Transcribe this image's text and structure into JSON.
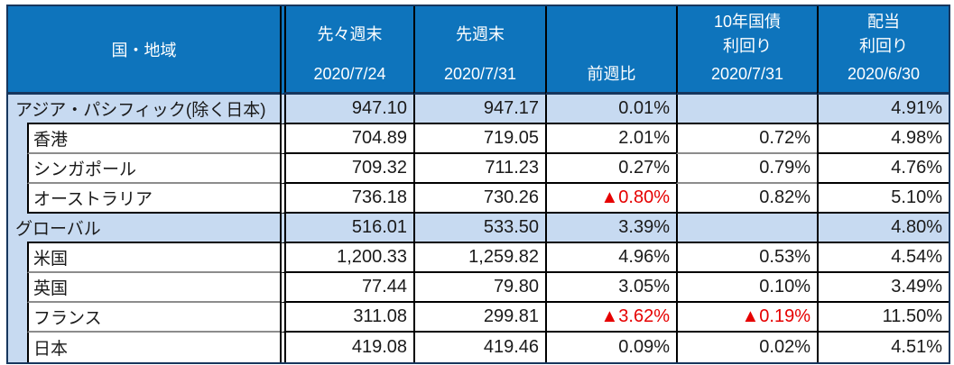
{
  "colors": {
    "header_bg": "#0E74BC",
    "header_text": "#FFFFFF",
    "category_row_bg": "#C7DAF1",
    "outer_border": "#17365D",
    "cell_border": "#000000",
    "sub_separator": "#8C8C8C",
    "negative_value": "#E60000"
  },
  "header": {
    "region_label": "国・地域",
    "cols": [
      {
        "top": [
          "先々週末"
        ],
        "bottom": "2020/7/24"
      },
      {
        "top": [
          "先週末"
        ],
        "bottom": "2020/7/31"
      },
      {
        "top": [],
        "bottom": "前週比"
      },
      {
        "top": [
          "10年国債",
          "利回り"
        ],
        "bottom": "2020/7/31"
      },
      {
        "top": [
          "配当",
          "利回り"
        ],
        "bottom": "2020/6/30"
      }
    ]
  },
  "rows": [
    {
      "name": "アジア・パシフィック(除く日本)",
      "category": true,
      "c": [
        "947.10",
        "947.17",
        "0.01%",
        "",
        "4.91%"
      ],
      "neg": [],
      "sep": {
        "name": "black",
        "cells": "black",
        "bond": "black"
      }
    },
    {
      "name": "香港",
      "category": false,
      "c": [
        "704.89",
        "719.05",
        "2.01%",
        "0.72%",
        "4.98%"
      ],
      "neg": [],
      "sep": {
        "name": "gray",
        "cells": "black",
        "bond": "gray"
      }
    },
    {
      "name": "シンガポール",
      "category": false,
      "c": [
        "709.32",
        "711.23",
        "0.27%",
        "0.79%",
        "4.76%"
      ],
      "neg": [],
      "sep": {
        "name": "gray",
        "cells": "black",
        "bond": "gray"
      }
    },
    {
      "name": "オーストラリア",
      "category": false,
      "c": [
        "736.18",
        "730.26",
        "▲0.80%",
        "0.82%",
        "5.10%"
      ],
      "neg": [
        2
      ],
      "sep": {
        "name": "black",
        "cells": "black",
        "bond": "black"
      }
    },
    {
      "name": "グローバル",
      "category": true,
      "c": [
        "516.01",
        "533.50",
        "3.39%",
        "",
        "4.80%"
      ],
      "neg": [],
      "sep": {
        "name": "black",
        "cells": "black",
        "bond": "black"
      }
    },
    {
      "name": "米国",
      "category": false,
      "c": [
        "1,200.33",
        "1,259.82",
        "4.96%",
        "0.53%",
        "4.54%"
      ],
      "neg": [],
      "sep": {
        "name": "gray",
        "cells": "black",
        "bond": "black"
      }
    },
    {
      "name": "英国",
      "category": false,
      "c": [
        "77.44",
        "79.80",
        "3.05%",
        "0.10%",
        "3.49%"
      ],
      "neg": [],
      "sep": {
        "name": "gray",
        "cells": "black",
        "bond": "black"
      }
    },
    {
      "name": "フランス",
      "category": false,
      "c": [
        "311.08",
        "299.81",
        "▲3.62%",
        "▲0.19%",
        "11.50%"
      ],
      "neg": [
        2,
        3
      ],
      "sep": {
        "name": "gray",
        "cells": "black",
        "bond": "black"
      }
    },
    {
      "name": "日本",
      "category": false,
      "c": [
        "419.08",
        "419.46",
        "0.09%",
        "0.02%",
        "4.51%"
      ],
      "neg": [],
      "sep": {
        "name": "none",
        "cells": "none",
        "bond": "none"
      }
    }
  ]
}
